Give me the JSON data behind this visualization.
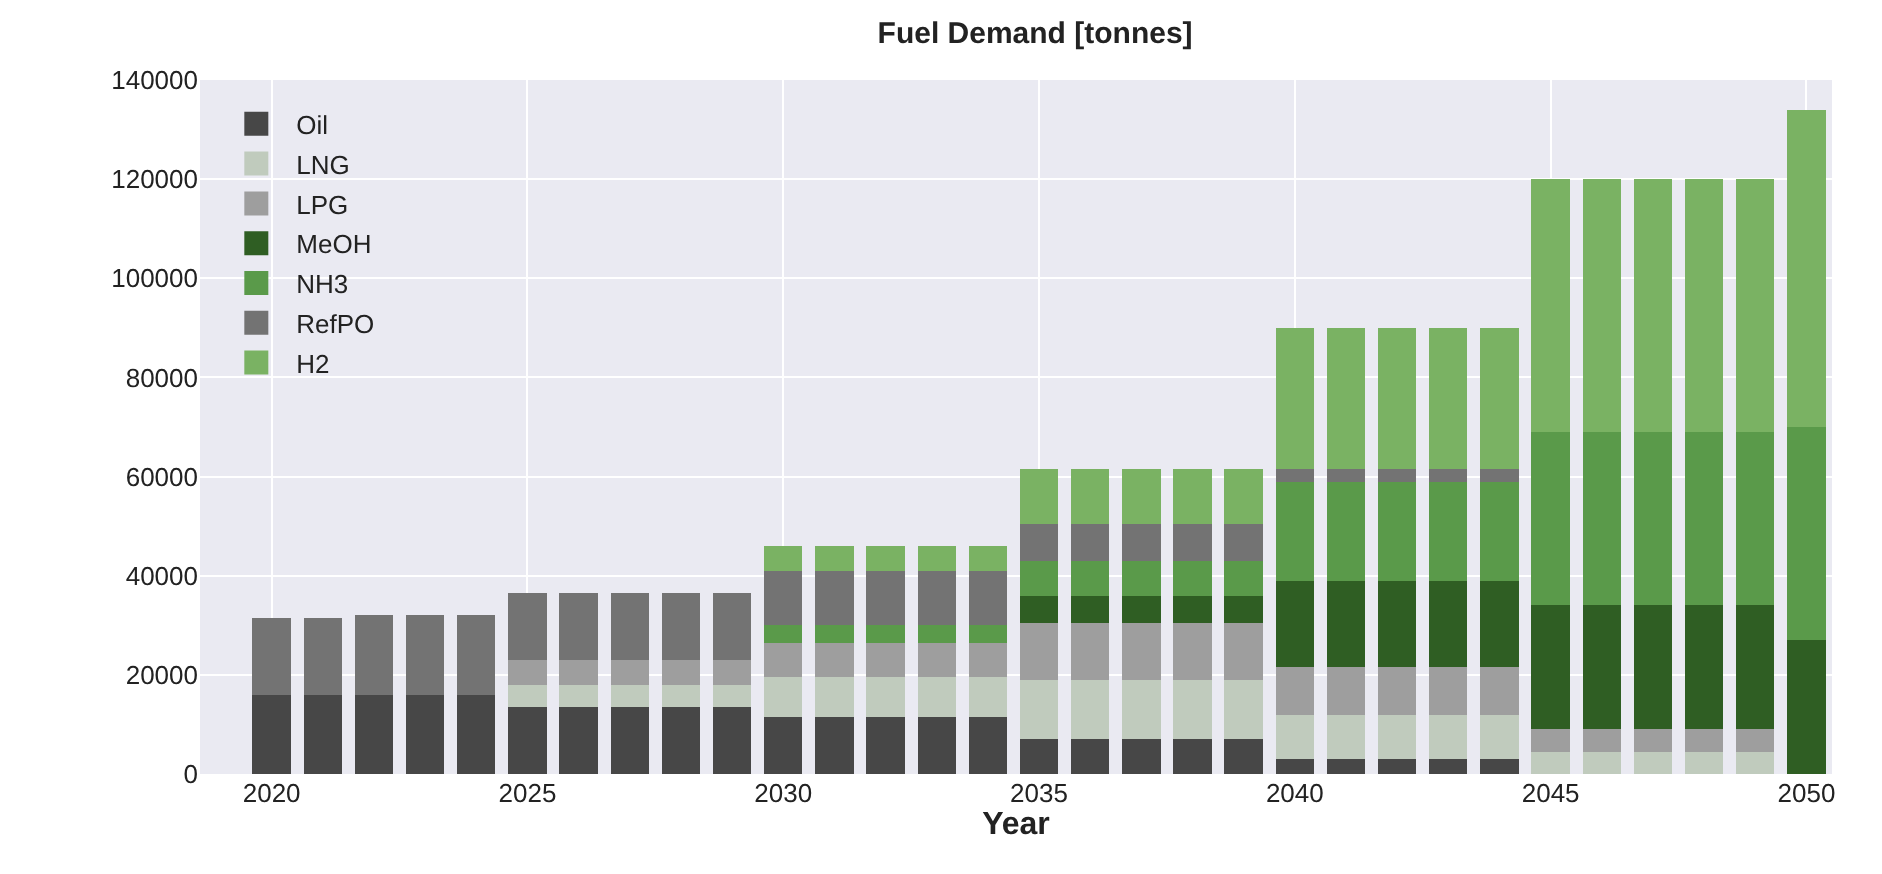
{
  "chart_data": {
    "type": "bar",
    "title": "Fuel Demand [tonnes]",
    "xlabel": "Year",
    "stacked": true,
    "x": [
      2020,
      2021,
      2022,
      2023,
      2024,
      2025,
      2026,
      2027,
      2028,
      2029,
      2030,
      2031,
      2032,
      2033,
      2034,
      2035,
      2036,
      2037,
      2038,
      2039,
      2040,
      2041,
      2042,
      2043,
      2044,
      2045,
      2046,
      2047,
      2048,
      2049,
      2050
    ],
    "series": [
      {
        "name": "Oil",
        "color": "#474747",
        "values": [
          16000,
          16000,
          16000,
          16000,
          16000,
          13500,
          13500,
          13500,
          13500,
          13500,
          11500,
          11500,
          11500,
          11500,
          11500,
          7000,
          7000,
          7000,
          7000,
          7000,
          3000,
          3000,
          3000,
          3000,
          3000,
          0,
          0,
          0,
          0,
          0,
          0
        ]
      },
      {
        "name": "LNG",
        "color": "#c0cbbd",
        "values": [
          0,
          0,
          0,
          0,
          0,
          4500,
          4500,
          4500,
          4500,
          4500,
          8000,
          8000,
          8000,
          8000,
          8000,
          12000,
          12000,
          12000,
          12000,
          12000,
          9000,
          9000,
          9000,
          9000,
          9000,
          4500,
          4500,
          4500,
          4500,
          4500,
          0
        ]
      },
      {
        "name": "LPG",
        "color": "#9e9e9e",
        "values": [
          0,
          0,
          0,
          0,
          0,
          5000,
          5000,
          5000,
          5000,
          5000,
          7000,
          7000,
          7000,
          7000,
          7000,
          11500,
          11500,
          11500,
          11500,
          11500,
          9500,
          9500,
          9500,
          9500,
          9500,
          4500,
          4500,
          4500,
          4500,
          4500,
          0
        ]
      },
      {
        "name": "MeOH",
        "color": "#2f5e23",
        "values": [
          0,
          0,
          0,
          0,
          0,
          0,
          0,
          0,
          0,
          0,
          0,
          0,
          0,
          0,
          0,
          5500,
          5500,
          5500,
          5500,
          5500,
          17500,
          17500,
          17500,
          17500,
          17500,
          25000,
          25000,
          25000,
          25000,
          25000,
          27000
        ]
      },
      {
        "name": "NH3",
        "color": "#5a9a4a",
        "values": [
          0,
          0,
          0,
          0,
          0,
          0,
          0,
          0,
          0,
          0,
          3500,
          3500,
          3500,
          3500,
          3500,
          7000,
          7000,
          7000,
          7000,
          7000,
          20000,
          20000,
          20000,
          20000,
          20000,
          35000,
          35000,
          35000,
          35000,
          35000,
          43000
        ]
      },
      {
        "name": "RefPO",
        "color": "#737373",
        "values": [
          15500,
          15500,
          16000,
          16000,
          16000,
          13500,
          13500,
          13500,
          13500,
          13500,
          11000,
          11000,
          11000,
          11000,
          11000,
          7500,
          7500,
          7500,
          7500,
          7500,
          2500,
          2500,
          2500,
          2500,
          2500,
          0,
          0,
          0,
          0,
          0,
          0
        ]
      },
      {
        "name": "H2",
        "color": "#7ab263",
        "values": [
          0,
          0,
          0,
          0,
          0,
          0,
          0,
          0,
          0,
          0,
          5000,
          5000,
          5000,
          5000,
          5000,
          11000,
          11000,
          11000,
          11000,
          11000,
          28500,
          28500,
          28500,
          28500,
          28500,
          51000,
          51000,
          51000,
          51000,
          51000,
          64000
        ]
      }
    ],
    "xlim": [
      2018.6,
      2050.5
    ],
    "xticks": [
      2020,
      2025,
      2030,
      2035,
      2040,
      2045,
      2050
    ],
    "ylim": [
      0,
      140000
    ],
    "yticks": [
      0,
      20000,
      40000,
      60000,
      80000,
      100000,
      120000,
      140000
    ],
    "grid": true,
    "legend": "top left"
  }
}
